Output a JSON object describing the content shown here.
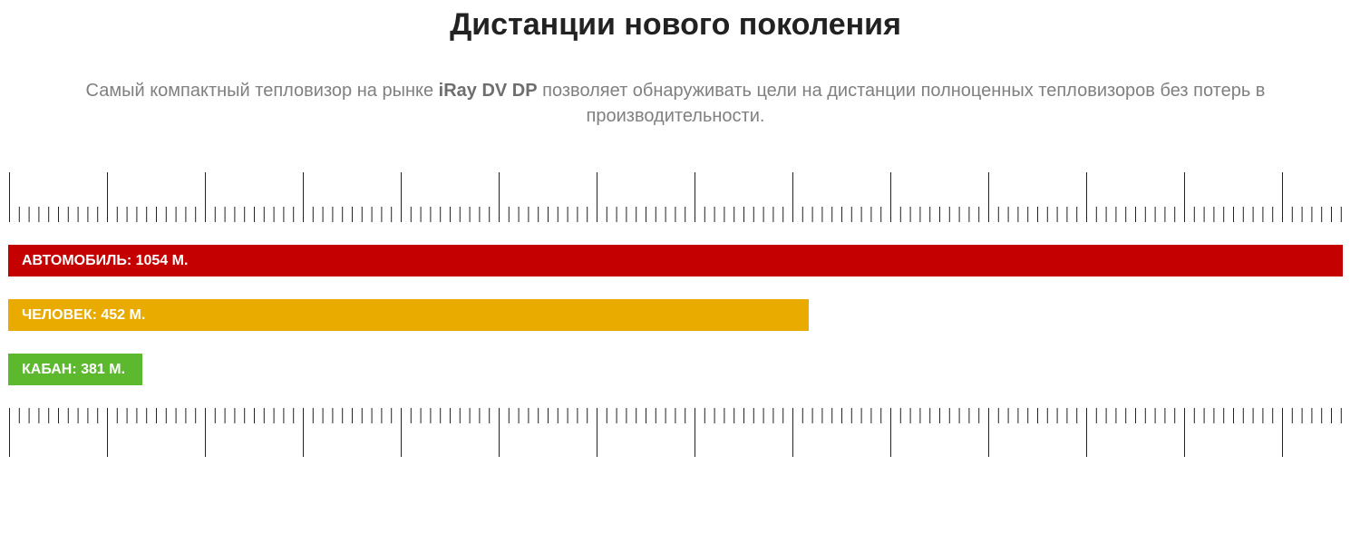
{
  "header": {
    "title": "Дистанции нового поколения",
    "subtitle": {
      "before": "Самый компактный тепловизор на рынке ",
      "bold": "iRay DV DP",
      "after": " позволяет обнаруживать цели на дистанции полноценных тепловизоров без потерь в производительности."
    }
  },
  "bars": [
    {
      "label": "АВТОМОБИЛЬ: 1054 М."
    },
    {
      "label": "ЧЕЛОВЕК: 452 М."
    },
    {
      "label": "КАБАН: 381 М."
    }
  ]
}
